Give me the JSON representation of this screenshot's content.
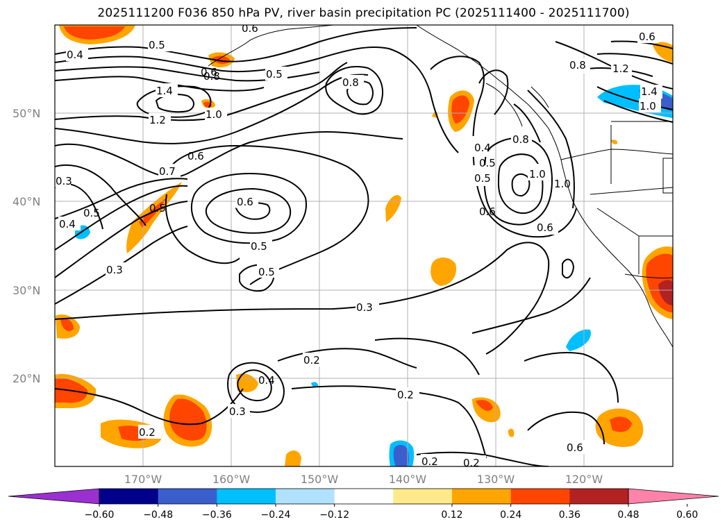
{
  "title": "2025111200 F036 850 hPa PV, river basin precipitation PC (2025111400 - 2025111700)",
  "lat_labels": [
    "50°N",
    "40°N",
    "30°N",
    "20°N"
  ],
  "lon_labels": [
    "170°W",
    "160°W",
    "150°W",
    "140°W",
    "130°W",
    "120°W"
  ],
  "colorbar": {
    "ticks": [
      "−0.60",
      "−0.48",
      "−0.36",
      "−0.24",
      "−0.12",
      "0.12",
      "0.24",
      "0.36",
      "0.48",
      "0.60"
    ],
    "colors": [
      "#9b30d0",
      "#00008b",
      "#3a5fcd",
      "#00bfff",
      "#b0e2ff",
      "#ffffff",
      "#ffe98a",
      "#ffa500",
      "#ff4500",
      "#b22222",
      "#ff82ab"
    ]
  },
  "contour_labels": [
    "0.4",
    "0.5",
    "0.6",
    "0.6",
    "0.8",
    "0.5",
    "1.4",
    "1.2",
    "1.0",
    "0.8",
    "0.5",
    "0.6",
    "0.7",
    "0.6",
    "0.5",
    "0.3",
    "0.3",
    "0.5",
    "0.4",
    "0.5",
    "0.6",
    "0.5",
    "0.3",
    "0.2",
    "0.4",
    "0.3",
    "0.2",
    "0.2",
    "0.2",
    "0.2",
    "0.4",
    "0.5",
    "0.8",
    "1.0",
    "1.0",
    "0.6",
    "0.8",
    "1.2",
    "1.4",
    "1.0",
    "0.6",
    "0.6"
  ]
}
